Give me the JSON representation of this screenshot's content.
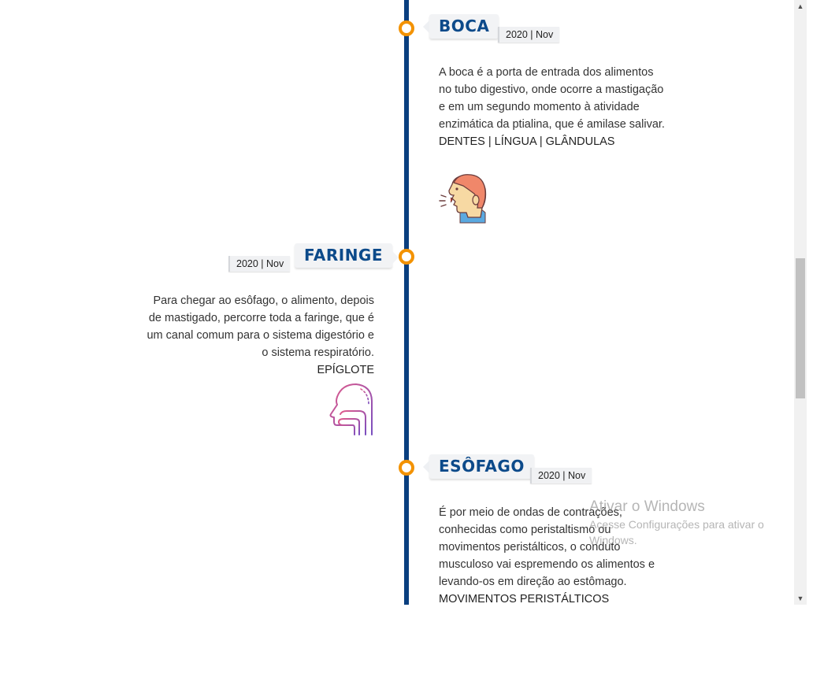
{
  "timeline": {
    "entries": [
      {
        "title": "BOCA",
        "date": "2020 | Nov",
        "description": "A boca é a porta de entrada dos alimentos no tubo digestivo, onde ocorre a mastigação e em um segundo momento à atividade enzimática da ptialina, que é amilase salivar.",
        "tags": "DENTES | LÍNGUA | GLÂNDULAS",
        "icon": "speaking-head-icon"
      },
      {
        "title": "FARINGE",
        "date": "2020 | Nov",
        "description": "Para chegar ao esôfago, o alimento, depois de mastigado, percorre toda a faringe, que é um canal comum para o sistema digestório e o sistema respiratório.",
        "tags": "EPÍGLOTE",
        "icon": "throat-icon"
      },
      {
        "title": "ESÔFAGO",
        "date": "2020 | Nov",
        "description": "É por meio de ondas de contrações, conhecidas como peristaltismo ou movimentos peristálticos, o conduto musculoso vai espremendo os alimentos e levando-os em direção ao estômago.",
        "tags": "MOVIMENTOS PERISTÁLTICOS"
      }
    ]
  },
  "watermark": {
    "title": "Ativar o Windows",
    "subtitle": "Acesse Configurações para ativar o Windows."
  },
  "scrollbar": {
    "up_arrow": "▲",
    "down_arrow": "▼"
  },
  "colors": {
    "timeline_line": "#0a3f7f",
    "node_ring": "#f39200",
    "title_text": "#0c4a8a"
  }
}
